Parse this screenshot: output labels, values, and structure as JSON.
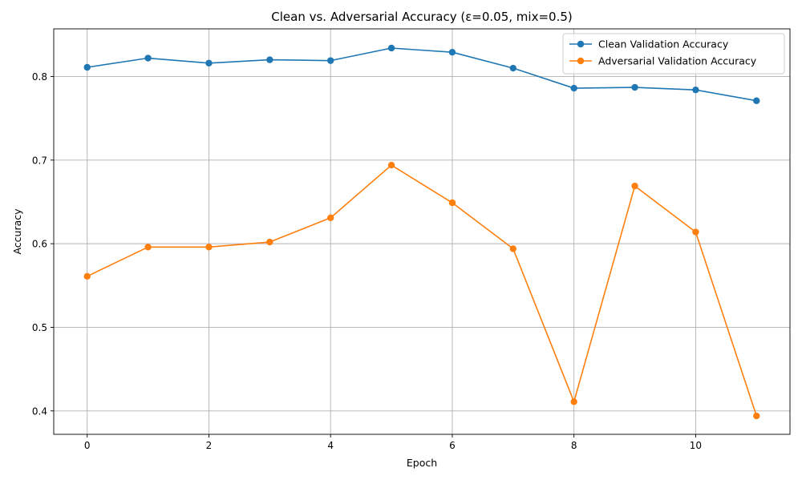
{
  "chart_data": {
    "type": "line",
    "title": "Clean vs. Adversarial Accuracy (ε=0.05, mix=0.5)",
    "xlabel": "Epoch",
    "ylabel": "Accuracy",
    "x": [
      0,
      1,
      2,
      3,
      4,
      5,
      6,
      7,
      8,
      9,
      10,
      11
    ],
    "xlim": [
      -0.55,
      11.55
    ],
    "ylim": [
      0.372,
      0.857
    ],
    "x_ticks": [
      0,
      2,
      4,
      6,
      8,
      10
    ],
    "x_tick_labels": [
      "0",
      "2",
      "4",
      "6",
      "8",
      "10"
    ],
    "y_ticks": [
      0.4,
      0.5,
      0.6,
      0.7,
      0.8
    ],
    "y_tick_labels": [
      "0.4",
      "0.5",
      "0.6",
      "0.7",
      "0.8"
    ],
    "grid": true,
    "legend_position": "top-right",
    "series": [
      {
        "name": "Clean Validation Accuracy",
        "color": "#1f77b4",
        "marker": "circle",
        "values": [
          0.811,
          0.822,
          0.816,
          0.82,
          0.819,
          0.834,
          0.829,
          0.81,
          0.786,
          0.787,
          0.784,
          0.771
        ]
      },
      {
        "name": "Adversarial Validation Accuracy",
        "color": "#ff7f0e",
        "marker": "circle",
        "values": [
          0.561,
          0.596,
          0.596,
          0.602,
          0.631,
          0.694,
          0.649,
          0.594,
          0.411,
          0.669,
          0.614,
          0.394
        ]
      }
    ]
  }
}
